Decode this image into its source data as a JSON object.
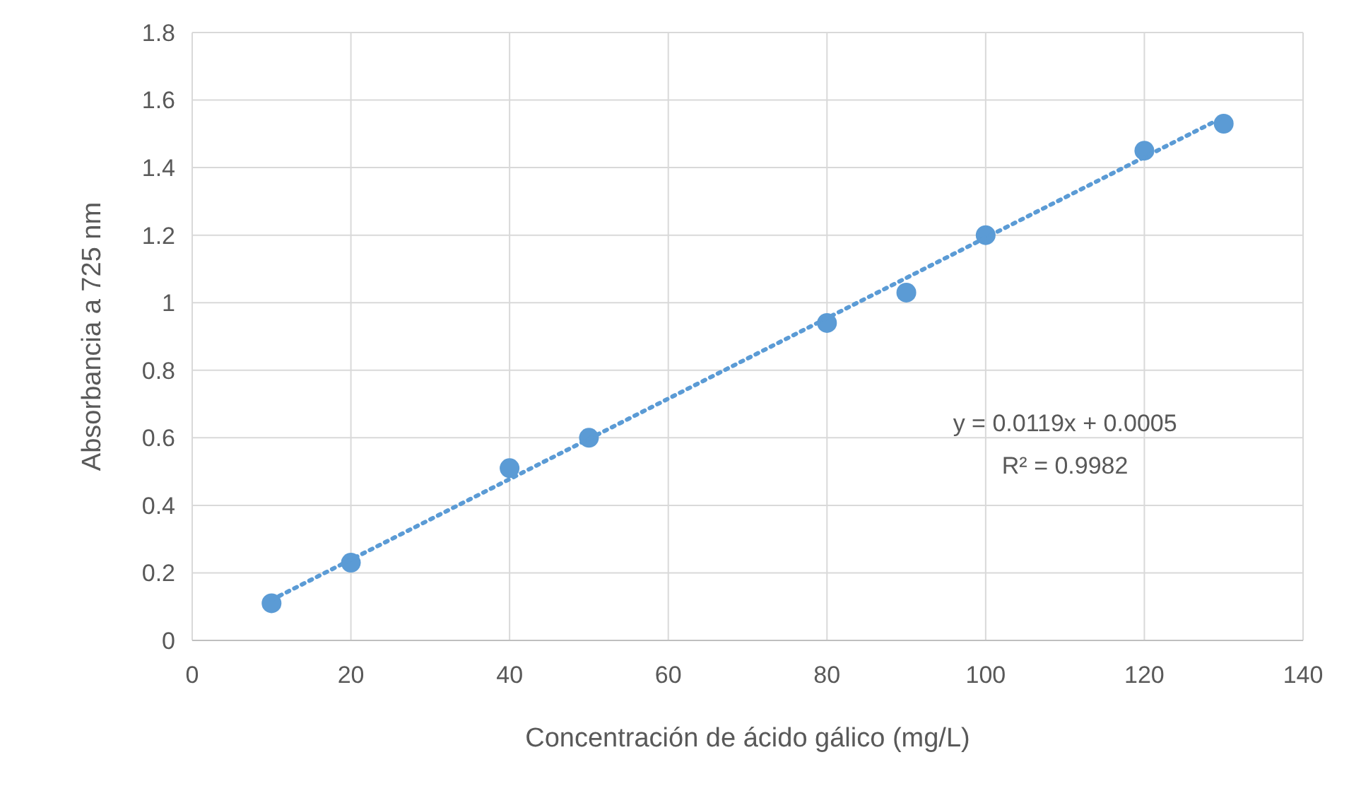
{
  "chart_data": {
    "type": "scatter",
    "xlabel": "Concentración de ácido gálico (mg/L)",
    "ylabel": "Absorbancia a 725 nm",
    "xlim": [
      0,
      140
    ],
    "xticks": [
      0,
      20,
      40,
      60,
      80,
      100,
      120,
      140
    ],
    "ylim": [
      0,
      1.8
    ],
    "yticks": [
      0,
      0.2,
      0.4,
      0.6,
      0.8,
      1,
      1.2,
      1.4,
      1.6,
      1.8
    ],
    "grid": true,
    "marker": "circle",
    "series": [
      {
        "color": "#5b9bd5",
        "x": [
          10,
          20,
          40,
          50,
          80,
          90,
          100,
          120,
          130
        ],
        "values": [
          0.11,
          0.23,
          0.51,
          0.6,
          0.94,
          1.03,
          1.2,
          1.45,
          1.53
        ]
      },
      {
        "type": "line",
        "color": "#5b9bd5",
        "line_style": "dotted",
        "marker": "none",
        "x": [
          10,
          130
        ],
        "values": [
          0.12,
          1.55
        ]
      }
    ],
    "annotations": [
      "y = 0.0119x + 0.0005",
      "R² = 0.9982"
    ]
  }
}
